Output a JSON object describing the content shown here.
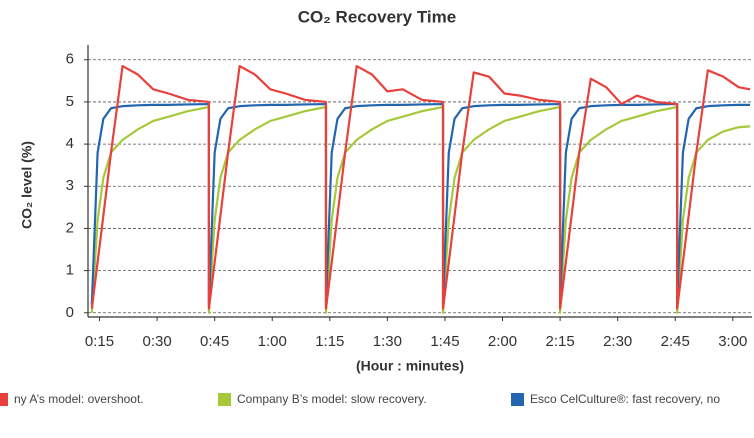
{
  "chart_data": {
    "type": "line",
    "title": "CO₂ Recovery Time",
    "x_label": "(Hour : minutes)",
    "y_label": "CO₂ level (%)",
    "x": [
      13,
      14.5,
      16,
      18,
      21,
      25,
      29,
      33,
      38,
      43.5,
      43.5,
      45,
      46.5,
      48.5,
      51.5,
      55.5,
      59.5,
      63.5,
      68.5,
      74,
      74,
      75.5,
      77,
      79,
      82,
      86,
      90,
      94,
      99,
      104.5,
      104.5,
      106,
      107.5,
      109.5,
      112.5,
      116.5,
      120.5,
      124.5,
      129.5,
      135,
      135,
      136.5,
      138,
      140,
      143,
      147,
      151,
      155,
      160,
      165.5,
      165.5,
      167,
      168.5,
      170.5,
      173.5,
      177.5,
      181.5,
      184.5
    ],
    "series": [
      {
        "name": "ny A’s model: overshoot.",
        "color": "#e8413c",
        "values": [
          0.1,
          1.2,
          2.3,
          3.8,
          5.85,
          5.65,
          5.3,
          5.2,
          5.05,
          5.0,
          0.1,
          1.2,
          2.3,
          3.8,
          5.85,
          5.65,
          5.3,
          5.2,
          5.05,
          5.0,
          0.1,
          1.2,
          2.3,
          3.8,
          5.85,
          5.65,
          5.25,
          5.3,
          5.05,
          5.0,
          0.1,
          1.2,
          2.3,
          3.8,
          5.7,
          5.6,
          5.2,
          5.15,
          5.05,
          5.0,
          0.1,
          1.2,
          2.3,
          3.8,
          5.55,
          5.35,
          4.95,
          5.15,
          5.0,
          4.95,
          0.1,
          1.2,
          2.3,
          3.8,
          5.75,
          5.6,
          5.35,
          5.3
        ]
      },
      {
        "name": "Company B’s model: slow recovery.",
        "color": "#a5c93a",
        "values": [
          0.0,
          2.2,
          3.2,
          3.8,
          4.1,
          4.35,
          4.55,
          4.65,
          4.78,
          4.88,
          0.0,
          2.2,
          3.2,
          3.8,
          4.1,
          4.35,
          4.55,
          4.65,
          4.78,
          4.88,
          0.0,
          2.2,
          3.2,
          3.8,
          4.1,
          4.35,
          4.55,
          4.65,
          4.78,
          4.88,
          0.0,
          2.2,
          3.2,
          3.8,
          4.1,
          4.35,
          4.55,
          4.65,
          4.78,
          4.88,
          0.0,
          2.2,
          3.2,
          3.8,
          4.1,
          4.35,
          4.55,
          4.65,
          4.78,
          4.88,
          0.0,
          2.2,
          3.2,
          3.8,
          4.1,
          4.3,
          4.4,
          4.42
        ]
      },
      {
        "name": "Esco CelCulture®: fast recovery, no",
        "color": "#2266b0",
        "values": [
          0.2,
          3.8,
          4.6,
          4.85,
          4.9,
          4.92,
          4.93,
          4.93,
          4.94,
          4.95,
          0.2,
          3.8,
          4.6,
          4.85,
          4.9,
          4.92,
          4.93,
          4.93,
          4.94,
          4.95,
          0.2,
          3.8,
          4.6,
          4.85,
          4.9,
          4.92,
          4.93,
          4.93,
          4.94,
          4.95,
          0.2,
          3.8,
          4.6,
          4.85,
          4.9,
          4.92,
          4.93,
          4.93,
          4.94,
          4.95,
          0.2,
          3.8,
          4.6,
          4.85,
          4.9,
          4.92,
          4.93,
          4.93,
          4.94,
          4.95,
          0.2,
          3.8,
          4.6,
          4.85,
          4.9,
          4.92,
          4.93,
          4.93
        ]
      }
    ],
    "xlim": [
      12,
      185
    ],
    "xticks": [
      {
        "value": 15,
        "label": "0:15"
      },
      {
        "value": 30,
        "label": "0:30"
      },
      {
        "value": 45,
        "label": "0:45"
      },
      {
        "value": 60,
        "label": "1:00"
      },
      {
        "value": 75,
        "label": "1:15"
      },
      {
        "value": 90,
        "label": "1:30"
      },
      {
        "value": 105,
        "label": "1:45"
      },
      {
        "value": 120,
        "label": "2:00"
      },
      {
        "value": 135,
        "label": "2:15"
      },
      {
        "value": 150,
        "label": "2:30"
      },
      {
        "value": 165,
        "label": "2:45"
      },
      {
        "value": 180,
        "label": "3:00"
      }
    ],
    "ylim": [
      -0.1,
      6.35
    ],
    "yticks": [
      0,
      1,
      2,
      3,
      4,
      5,
      6
    ],
    "grid": true
  }
}
